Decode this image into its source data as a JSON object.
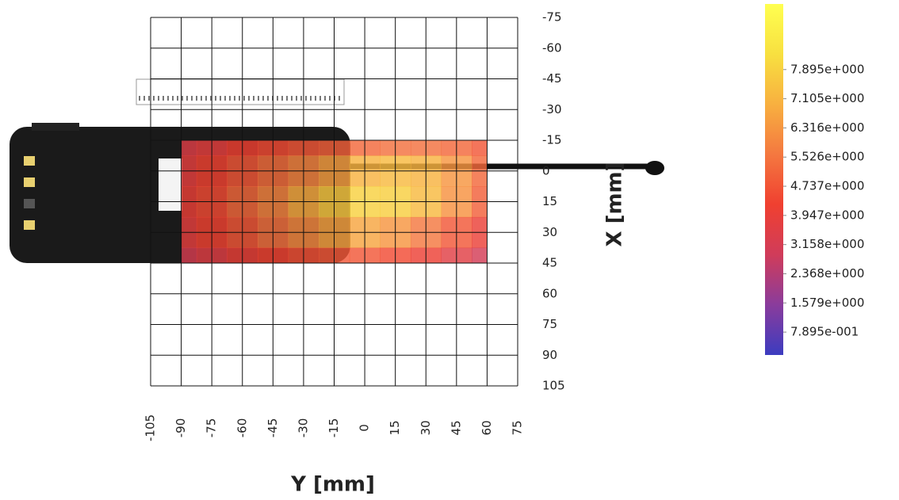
{
  "chart_data": {
    "type": "heatmap",
    "x_label": "Y [mm]",
    "y_label": "X [mm]",
    "x": [
      -90,
      -75,
      -60,
      -45,
      -30,
      -15,
      0,
      15,
      30,
      45,
      60
    ],
    "y": [
      -15,
      0,
      15,
      30,
      45
    ],
    "z": [
      [
        3.5,
        3.8,
        4.2,
        4.5,
        4.8,
        5.0,
        5.2,
        5.4,
        5.4,
        5.2,
        4.8
      ],
      [
        3.8,
        4.3,
        4.8,
        5.3,
        5.9,
        6.5,
        7.0,
        7.2,
        7.0,
        6.3,
        5.2
      ],
      [
        4.0,
        4.5,
        5.2,
        5.9,
        6.8,
        7.6,
        7.9,
        7.8,
        7.2,
        6.2,
        5.0
      ],
      [
        3.8,
        4.3,
        4.8,
        5.4,
        6.0,
        6.6,
        6.7,
        6.3,
        5.6,
        4.8,
        4.0
      ],
      [
        3.2,
        3.6,
        4.0,
        4.3,
        4.6,
        4.8,
        4.8,
        4.5,
        4.1,
        3.6,
        3.0
      ]
    ],
    "xlim": [
      -105,
      75
    ],
    "xticks": [
      -105,
      -90,
      -75,
      -60,
      -45,
      -30,
      -15,
      0,
      15,
      30,
      45,
      60,
      75
    ],
    "ylim": [
      -75,
      105
    ],
    "yticks": [
      -75,
      -60,
      -45,
      -30,
      -15,
      0,
      15,
      30,
      45,
      60,
      75,
      90,
      105
    ],
    "grid": true,
    "colorbar": {
      "clim": [
        0.17,
        9.67
      ],
      "colors": [
        "#3c3cc0",
        "#8a3c9c",
        "#d03c5a",
        "#f04030",
        "#f47840",
        "#f8b040",
        "#f8e040",
        "#ffff50"
      ],
      "ticks": [
        {
          "value": 7.895,
          "label": "7.895e+000"
        },
        {
          "value": 7.105,
          "label": "7.105e+000"
        },
        {
          "value": 6.316,
          "label": "6.316e+000"
        },
        {
          "value": 5.526,
          "label": "5.526e+000"
        },
        {
          "value": 4.737,
          "label": "4.737e+000"
        },
        {
          "value": 3.947,
          "label": "3.947e+000"
        },
        {
          "value": 3.158,
          "label": "3.158e+000"
        },
        {
          "value": 2.368,
          "label": "2.368e+000"
        },
        {
          "value": 1.579,
          "label": "1.579e+000"
        },
        {
          "value": 0.7895,
          "label": "7.895e-001"
        }
      ]
    }
  }
}
